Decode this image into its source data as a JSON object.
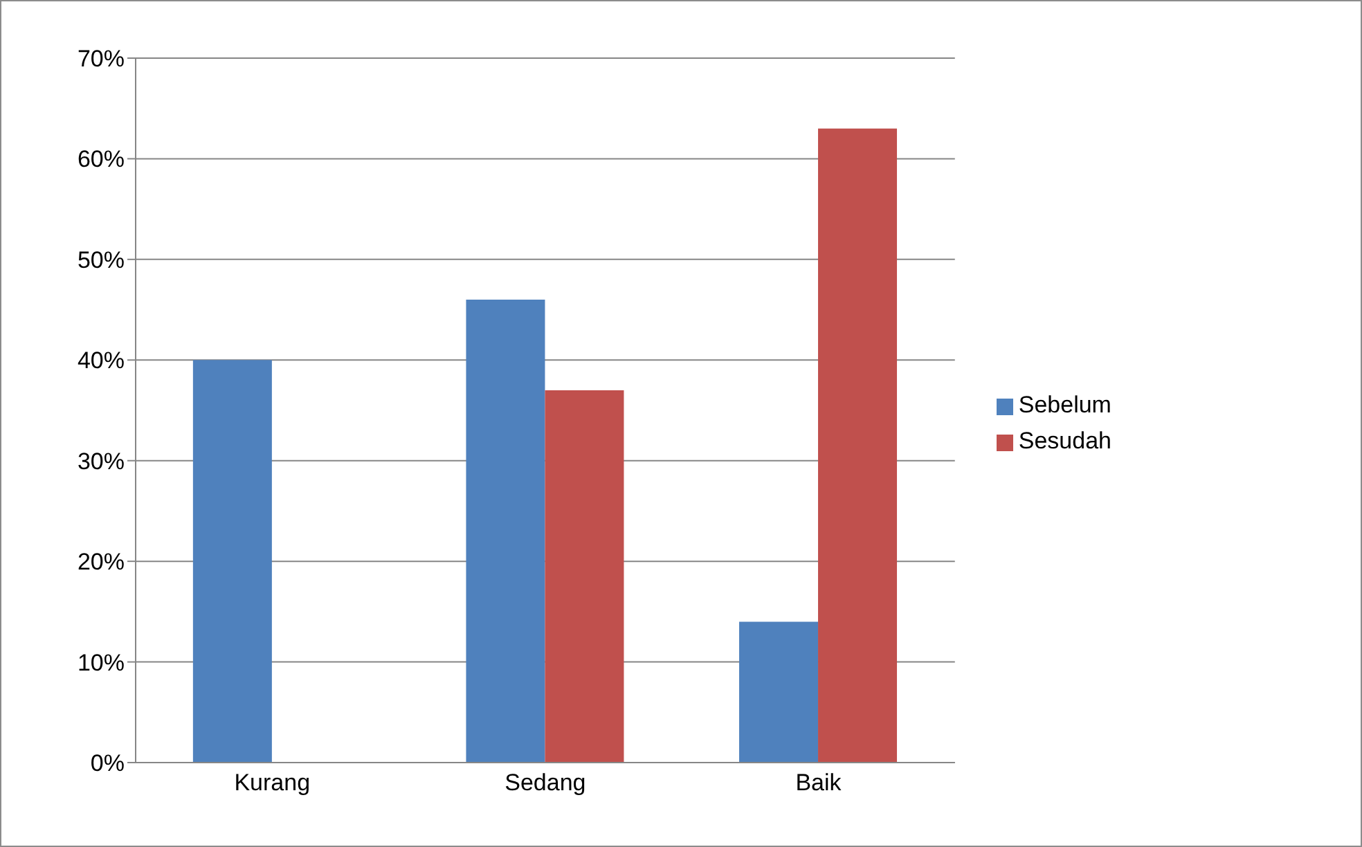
{
  "chart_data": {
    "type": "bar",
    "categories": [
      "Kurang",
      "Sedang",
      "Baik"
    ],
    "series": [
      {
        "name": "Sebelum",
        "color": "#4f81bd",
        "values": [
          40,
          46,
          14
        ]
      },
      {
        "name": "Sesudah",
        "color": "#c0504d",
        "values": [
          0,
          37,
          63
        ]
      }
    ],
    "ylim": [
      0,
      70
    ],
    "yticks": [
      {
        "value": 0,
        "label": "0%"
      },
      {
        "value": 10,
        "label": "10%"
      },
      {
        "value": 20,
        "label": "20%"
      },
      {
        "value": 30,
        "label": "30%"
      },
      {
        "value": 40,
        "label": "40%"
      },
      {
        "value": 50,
        "label": "50%"
      },
      {
        "value": 60,
        "label": "60%"
      },
      {
        "value": 70,
        "label": "70%"
      }
    ],
    "grid": "y",
    "legend": "right"
  }
}
